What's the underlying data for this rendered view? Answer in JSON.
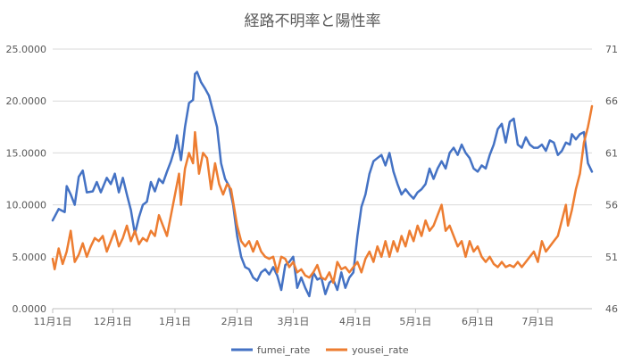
{
  "chart_data": {
    "type": "line",
    "title": "経路不明率と陽性率",
    "xlabel": "",
    "ylabel": "",
    "x_start": "2020-11-01",
    "x_end": "2021-07-28",
    "x_tick_labels": [
      "11月1日",
      "12月1日",
      "1月1日",
      "2月1日",
      "3月1日",
      "4月1日",
      "5月1日",
      "6月1日",
      "7月1日"
    ],
    "x_tick_dates": [
      "2020-11-01",
      "2020-12-01",
      "2021-01-01",
      "2021-02-01",
      "2021-03-01",
      "2021-04-01",
      "2021-05-01",
      "2021-06-01",
      "2021-07-01"
    ],
    "ylim_left": [
      0,
      25
    ],
    "y_ticks_left": [
      0,
      5,
      10,
      15,
      20,
      25
    ],
    "y_tick_labels_left": [
      "0.0000",
      "5.0000",
      "10.0000",
      "15.0000",
      "20.0000",
      "25.0000"
    ],
    "ylim_right": [
      46,
      71
    ],
    "y_ticks_right": [
      46,
      51,
      56,
      61,
      66,
      71
    ],
    "y_tick_labels_right": [
      "46",
      "51",
      "56",
      "61",
      "66",
      "71"
    ],
    "grid": true,
    "legend_position": "bottom",
    "series": [
      {
        "name": "fumei_rate",
        "axis": "left",
        "color": "#4472C4",
        "points": [
          [
            "2020-11-01",
            8.5
          ],
          [
            "2020-11-04",
            9.6
          ],
          [
            "2020-11-07",
            9.3
          ],
          [
            "2020-11-08",
            11.8
          ],
          [
            "2020-11-10",
            11.0
          ],
          [
            "2020-11-12",
            10.0
          ],
          [
            "2020-11-14",
            12.7
          ],
          [
            "2020-11-16",
            13.3
          ],
          [
            "2020-11-18",
            11.2
          ],
          [
            "2020-11-21",
            11.3
          ],
          [
            "2020-11-23",
            12.2
          ],
          [
            "2020-11-25",
            11.2
          ],
          [
            "2020-11-28",
            12.6
          ],
          [
            "2020-11-30",
            12.0
          ],
          [
            "2020-12-02",
            13.0
          ],
          [
            "2020-12-04",
            11.2
          ],
          [
            "2020-12-06",
            12.6
          ],
          [
            "2020-12-08",
            11.0
          ],
          [
            "2020-12-10",
            9.5
          ],
          [
            "2020-12-12",
            7.2
          ],
          [
            "2020-12-14",
            8.8
          ],
          [
            "2020-12-16",
            10.0
          ],
          [
            "2020-12-18",
            10.3
          ],
          [
            "2020-12-20",
            12.2
          ],
          [
            "2020-12-22",
            11.3
          ],
          [
            "2020-12-24",
            12.5
          ],
          [
            "2020-12-26",
            12.1
          ],
          [
            "2020-12-28",
            13.2
          ],
          [
            "2020-12-30",
            14.2
          ],
          [
            "2021-01-01",
            15.5
          ],
          [
            "2021-01-02",
            16.7
          ],
          [
            "2021-01-04",
            14.3
          ],
          [
            "2021-01-06",
            17.5
          ],
          [
            "2021-01-08",
            19.8
          ],
          [
            "2021-01-10",
            20.1
          ],
          [
            "2021-01-11",
            22.6
          ],
          [
            "2021-01-12",
            22.8
          ],
          [
            "2021-01-14",
            21.8
          ],
          [
            "2021-01-16",
            21.2
          ],
          [
            "2021-01-18",
            20.5
          ],
          [
            "2021-01-20",
            19.0
          ],
          [
            "2021-01-22",
            17.5
          ],
          [
            "2021-01-24",
            14.0
          ],
          [
            "2021-01-26",
            12.5
          ],
          [
            "2021-01-28",
            11.8
          ],
          [
            "2021-01-30",
            10.0
          ],
          [
            "2021-02-01",
            7.0
          ],
          [
            "2021-02-03",
            5.0
          ],
          [
            "2021-02-05",
            4.0
          ],
          [
            "2021-02-07",
            3.8
          ],
          [
            "2021-02-09",
            3.0
          ],
          [
            "2021-02-11",
            2.7
          ],
          [
            "2021-02-13",
            3.5
          ],
          [
            "2021-02-15",
            3.8
          ],
          [
            "2021-02-17",
            3.3
          ],
          [
            "2021-02-19",
            4.0
          ],
          [
            "2021-02-21",
            3.2
          ],
          [
            "2021-02-23",
            1.8
          ],
          [
            "2021-02-25",
            4.2
          ],
          [
            "2021-02-27",
            4.5
          ],
          [
            "2021-03-01",
            5.0
          ],
          [
            "2021-03-03",
            2.0
          ],
          [
            "2021-03-05",
            3.0
          ],
          [
            "2021-03-07",
            2.0
          ],
          [
            "2021-03-09",
            1.2
          ],
          [
            "2021-03-11",
            3.5
          ],
          [
            "2021-03-13",
            2.8
          ],
          [
            "2021-03-15",
            3.0
          ],
          [
            "2021-03-17",
            1.4
          ],
          [
            "2021-03-19",
            2.5
          ],
          [
            "2021-03-21",
            2.8
          ],
          [
            "2021-03-23",
            1.8
          ],
          [
            "2021-03-25",
            3.5
          ],
          [
            "2021-03-27",
            2.0
          ],
          [
            "2021-03-29",
            3.0
          ],
          [
            "2021-03-31",
            3.5
          ],
          [
            "2021-04-02",
            7.0
          ],
          [
            "2021-04-04",
            9.8
          ],
          [
            "2021-04-06",
            11.0
          ],
          [
            "2021-04-08",
            13.0
          ],
          [
            "2021-04-10",
            14.2
          ],
          [
            "2021-04-12",
            14.5
          ],
          [
            "2021-04-14",
            14.8
          ],
          [
            "2021-04-16",
            13.8
          ],
          [
            "2021-04-18",
            15.0
          ],
          [
            "2021-04-20",
            13.2
          ],
          [
            "2021-04-22",
            12.0
          ],
          [
            "2021-04-24",
            11.0
          ],
          [
            "2021-04-26",
            11.5
          ],
          [
            "2021-04-28",
            11.0
          ],
          [
            "2021-04-30",
            10.6
          ],
          [
            "2021-05-02",
            11.2
          ],
          [
            "2021-05-04",
            11.5
          ],
          [
            "2021-05-06",
            12.0
          ],
          [
            "2021-05-08",
            13.5
          ],
          [
            "2021-05-10",
            12.5
          ],
          [
            "2021-05-12",
            13.5
          ],
          [
            "2021-05-14",
            14.2
          ],
          [
            "2021-05-16",
            13.5
          ],
          [
            "2021-05-18",
            15.0
          ],
          [
            "2021-05-20",
            15.5
          ],
          [
            "2021-05-22",
            14.8
          ],
          [
            "2021-05-24",
            15.8
          ],
          [
            "2021-05-26",
            15.0
          ],
          [
            "2021-05-28",
            14.5
          ],
          [
            "2021-05-30",
            13.5
          ],
          [
            "2021-06-01",
            13.2
          ],
          [
            "2021-06-03",
            13.8
          ],
          [
            "2021-06-05",
            13.5
          ],
          [
            "2021-06-07",
            14.8
          ],
          [
            "2021-06-09",
            15.8
          ],
          [
            "2021-06-11",
            17.3
          ],
          [
            "2021-06-13",
            17.8
          ],
          [
            "2021-06-15",
            16.0
          ],
          [
            "2021-06-17",
            18.0
          ],
          [
            "2021-06-19",
            18.3
          ],
          [
            "2021-06-21",
            15.8
          ],
          [
            "2021-06-23",
            15.5
          ],
          [
            "2021-06-25",
            16.5
          ],
          [
            "2021-06-27",
            15.8
          ],
          [
            "2021-06-29",
            15.5
          ],
          [
            "2021-07-01",
            15.5
          ],
          [
            "2021-07-03",
            15.8
          ],
          [
            "2021-07-05",
            15.2
          ],
          [
            "2021-07-07",
            16.2
          ],
          [
            "2021-07-09",
            16.0
          ],
          [
            "2021-07-11",
            14.8
          ],
          [
            "2021-07-13",
            15.2
          ],
          [
            "2021-07-15",
            16.0
          ],
          [
            "2021-07-17",
            15.8
          ],
          [
            "2021-07-18",
            16.8
          ],
          [
            "2021-07-20",
            16.3
          ],
          [
            "2021-07-22",
            16.8
          ],
          [
            "2021-07-24",
            17.0
          ],
          [
            "2021-07-26",
            14.0
          ],
          [
            "2021-07-28",
            13.2
          ]
        ]
      },
      {
        "name": "yousei_rate",
        "axis": "right",
        "color": "#ED7D31",
        "points": [
          [
            "2020-11-01",
            50.8
          ],
          [
            "2020-11-02",
            49.8
          ],
          [
            "2020-11-04",
            51.8
          ],
          [
            "2020-11-06",
            50.3
          ],
          [
            "2020-11-08",
            51.5
          ],
          [
            "2020-11-10",
            53.5
          ],
          [
            "2020-11-12",
            50.5
          ],
          [
            "2020-11-14",
            51.2
          ],
          [
            "2020-11-16",
            52.3
          ],
          [
            "2020-11-18",
            51.0
          ],
          [
            "2020-11-20",
            52.0
          ],
          [
            "2020-11-22",
            52.8
          ],
          [
            "2020-11-24",
            52.5
          ],
          [
            "2020-11-26",
            53.0
          ],
          [
            "2020-11-28",
            51.5
          ],
          [
            "2020-11-30",
            52.5
          ],
          [
            "2020-12-02",
            53.5
          ],
          [
            "2020-12-04",
            52.0
          ],
          [
            "2020-12-06",
            52.8
          ],
          [
            "2020-12-08",
            54.0
          ],
          [
            "2020-12-10",
            52.5
          ],
          [
            "2020-12-12",
            53.5
          ],
          [
            "2020-12-14",
            52.2
          ],
          [
            "2020-12-16",
            52.8
          ],
          [
            "2020-12-18",
            52.5
          ],
          [
            "2020-12-20",
            53.5
          ],
          [
            "2020-12-22",
            53.0
          ],
          [
            "2020-12-24",
            55.0
          ],
          [
            "2020-12-26",
            54.0
          ],
          [
            "2020-12-28",
            53.0
          ],
          [
            "2020-12-30",
            55.0
          ],
          [
            "2021-01-01",
            57.0
          ],
          [
            "2021-01-03",
            59.0
          ],
          [
            "2021-01-04",
            56.0
          ],
          [
            "2021-01-06",
            59.5
          ],
          [
            "2021-01-08",
            61.0
          ],
          [
            "2021-01-10",
            60.0
          ],
          [
            "2021-01-11",
            63.0
          ],
          [
            "2021-01-13",
            59.0
          ],
          [
            "2021-01-15",
            61.0
          ],
          [
            "2021-01-17",
            60.5
          ],
          [
            "2021-01-19",
            57.5
          ],
          [
            "2021-01-21",
            60.0
          ],
          [
            "2021-01-23",
            58.0
          ],
          [
            "2021-01-25",
            57.0
          ],
          [
            "2021-01-27",
            58.0
          ],
          [
            "2021-01-29",
            57.5
          ],
          [
            "2021-02-01",
            54.0
          ],
          [
            "2021-02-03",
            52.5
          ],
          [
            "2021-02-05",
            52.0
          ],
          [
            "2021-02-07",
            52.5
          ],
          [
            "2021-02-09",
            51.5
          ],
          [
            "2021-02-11",
            52.5
          ],
          [
            "2021-02-13",
            51.5
          ],
          [
            "2021-02-15",
            51.0
          ],
          [
            "2021-02-17",
            50.8
          ],
          [
            "2021-02-19",
            51.0
          ],
          [
            "2021-02-21",
            49.5
          ],
          [
            "2021-02-23",
            51.0
          ],
          [
            "2021-02-25",
            50.8
          ],
          [
            "2021-02-27",
            50.0
          ],
          [
            "2021-03-01",
            50.5
          ],
          [
            "2021-03-03",
            49.5
          ],
          [
            "2021-03-05",
            49.8
          ],
          [
            "2021-03-07",
            49.2
          ],
          [
            "2021-03-09",
            49.0
          ],
          [
            "2021-03-11",
            49.5
          ],
          [
            "2021-03-13",
            50.2
          ],
          [
            "2021-03-15",
            49.0
          ],
          [
            "2021-03-17",
            48.8
          ],
          [
            "2021-03-19",
            49.5
          ],
          [
            "2021-03-21",
            48.5
          ],
          [
            "2021-03-23",
            50.5
          ],
          [
            "2021-03-25",
            49.8
          ],
          [
            "2021-03-27",
            50.0
          ],
          [
            "2021-03-29",
            49.5
          ],
          [
            "2021-03-31",
            50.0
          ],
          [
            "2021-04-02",
            50.5
          ],
          [
            "2021-04-04",
            49.5
          ],
          [
            "2021-04-06",
            50.8
          ],
          [
            "2021-04-08",
            51.5
          ],
          [
            "2021-04-10",
            50.5
          ],
          [
            "2021-04-12",
            52.0
          ],
          [
            "2021-04-14",
            51.0
          ],
          [
            "2021-04-16",
            52.5
          ],
          [
            "2021-04-18",
            51.0
          ],
          [
            "2021-04-20",
            52.5
          ],
          [
            "2021-04-22",
            51.5
          ],
          [
            "2021-04-24",
            53.0
          ],
          [
            "2021-04-26",
            52.0
          ],
          [
            "2021-04-28",
            53.5
          ],
          [
            "2021-04-30",
            52.5
          ],
          [
            "2021-05-02",
            54.0
          ],
          [
            "2021-05-04",
            53.0
          ],
          [
            "2021-05-06",
            54.5
          ],
          [
            "2021-05-08",
            53.5
          ],
          [
            "2021-05-10",
            54.0
          ],
          [
            "2021-05-12",
            55.0
          ],
          [
            "2021-05-14",
            56.0
          ],
          [
            "2021-05-16",
            53.5
          ],
          [
            "2021-05-18",
            54.0
          ],
          [
            "2021-05-20",
            53.0
          ],
          [
            "2021-05-22",
            52.0
          ],
          [
            "2021-05-24",
            52.5
          ],
          [
            "2021-05-26",
            51.0
          ],
          [
            "2021-05-28",
            52.5
          ],
          [
            "2021-05-30",
            51.5
          ],
          [
            "2021-06-01",
            52.0
          ],
          [
            "2021-06-03",
            51.0
          ],
          [
            "2021-06-05",
            50.5
          ],
          [
            "2021-06-07",
            51.0
          ],
          [
            "2021-06-09",
            50.3
          ],
          [
            "2021-06-11",
            50.0
          ],
          [
            "2021-06-13",
            50.5
          ],
          [
            "2021-06-15",
            50.0
          ],
          [
            "2021-06-17",
            50.2
          ],
          [
            "2021-06-19",
            50.0
          ],
          [
            "2021-06-21",
            50.5
          ],
          [
            "2021-06-23",
            50.0
          ],
          [
            "2021-06-25",
            50.5
          ],
          [
            "2021-06-27",
            51.0
          ],
          [
            "2021-06-29",
            51.5
          ],
          [
            "2021-07-01",
            50.5
          ],
          [
            "2021-07-03",
            52.5
          ],
          [
            "2021-07-05",
            51.5
          ],
          [
            "2021-07-07",
            52.0
          ],
          [
            "2021-07-09",
            52.5
          ],
          [
            "2021-07-11",
            53.0
          ],
          [
            "2021-07-13",
            54.5
          ],
          [
            "2021-07-15",
            56.0
          ],
          [
            "2021-07-16",
            54.0
          ],
          [
            "2021-07-18",
            55.5
          ],
          [
            "2021-07-20",
            57.5
          ],
          [
            "2021-07-22",
            59.0
          ],
          [
            "2021-07-24",
            62.0
          ],
          [
            "2021-07-26",
            63.5
          ],
          [
            "2021-07-27",
            64.5
          ],
          [
            "2021-07-28",
            65.5
          ]
        ]
      }
    ]
  }
}
